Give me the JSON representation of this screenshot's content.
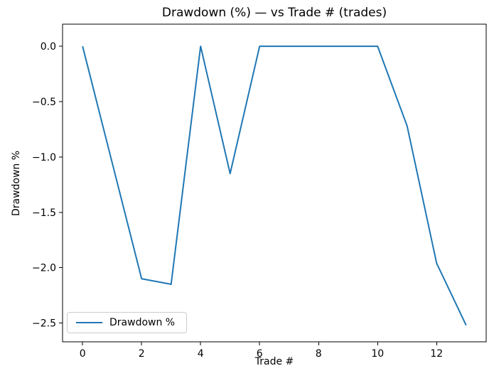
{
  "chart_data": {
    "type": "line",
    "title": "Drawdown (%) — vs Trade # (trades)",
    "xlabel": "Trade #",
    "ylabel": "Drawdown %",
    "x": [
      0,
      1,
      2,
      3,
      4,
      5,
      6,
      7,
      8,
      9,
      10,
      11,
      12,
      13
    ],
    "series": [
      {
        "name": "Drawdown %",
        "color": "#1f77b4",
        "values": [
          0.0,
          -1.05,
          -2.1,
          -2.15,
          0.0,
          -1.15,
          0.0,
          0.0,
          0.0,
          0.0,
          0.0,
          -0.72,
          -1.96,
          -2.52
        ]
      }
    ],
    "xlim": [
      -0.68,
      13.68
    ],
    "ylim": [
      -2.67,
      0.2
    ],
    "xticks": [
      0,
      2,
      4,
      6,
      8,
      10,
      12
    ],
    "yticks": [
      0.0,
      -0.5,
      -1.0,
      -1.5,
      -2.0,
      -2.5
    ],
    "grid": false,
    "legend": {
      "location": "lower left",
      "entries": [
        "Drawdown %"
      ]
    },
    "axis_color": "#000000",
    "background": "#ffffff"
  }
}
